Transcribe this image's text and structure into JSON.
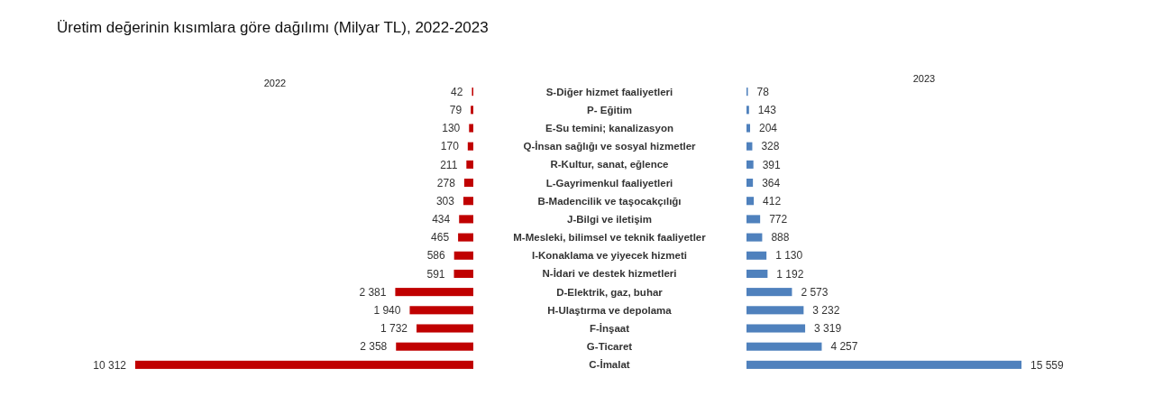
{
  "chart_data": [
    {
      "type": "bar",
      "orientation": "horizontal",
      "title": "Üretim değerinin kısımlara göre dağılımı (Milyar TL), 2022-2023",
      "categories": [
        "S-Diğer hizmet faaliyetleri",
        "P- Eğitim",
        "E-Su temini; kanalizasyon",
        "Q-İnsan sağlığı ve sosyal hizmetler",
        "R-Kultur, sanat, eğlence",
        "L-Gayrimenkul faaliyetleri",
        "B-Madencilik ve taşocakçılığı",
        "J-Bilgi ve iletişim",
        "M-Mesleki, bilimsel ve teknik faaliyetler",
        "I-Konaklama ve yiyecek hizmeti",
        "N-İdari ve destek hizmetleri",
        "D-Elektrik, gaz, buhar",
        "H-Ulaştırma ve depolama",
        "F-İnşaat",
        "G-Ticaret",
        "C-İmalat"
      ],
      "series": [
        {
          "name": "2022",
          "color": "#c00000",
          "values": [
            42,
            79,
            130,
            170,
            211,
            278,
            303,
            434,
            465,
            586,
            591,
            2381,
            1940,
            1732,
            2358,
            10312
          ],
          "value_labels": [
            "42",
            "79",
            "130",
            "170",
            "211",
            "278",
            "303",
            "434",
            "465",
            "586",
            "591",
            "2 381",
            "1 940",
            "1 732",
            "2 358",
            "10 312"
          ]
        }
      ]
    },
    {
      "type": "bar",
      "orientation": "horizontal",
      "categories": [
        null,
        null,
        null,
        null,
        null,
        null,
        null,
        null,
        null,
        null,
        null,
        null,
        null,
        null,
        null,
        null
      ],
      "series": [
        {
          "name": "2023",
          "color": "#4f81bd",
          "values": [
            78,
            143,
            204,
            328,
            391,
            364,
            412,
            772,
            888,
            1130,
            1192,
            2573,
            3232,
            3319,
            4257,
            15559
          ],
          "value_labels": [
            "78",
            "143",
            "204",
            "328",
            "391",
            "364",
            "412",
            "772",
            "888",
            "1 130",
            "1 192",
            "2 573",
            "3 232",
            "3 319",
            "4 257",
            "15 559"
          ]
        }
      ]
    }
  ]
}
